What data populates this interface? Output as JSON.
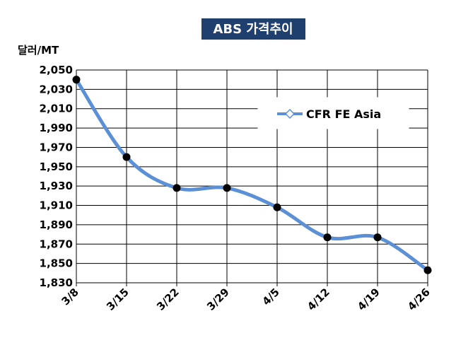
{
  "chart_data": {
    "type": "line",
    "title": "ABS 가격추이",
    "ylabel": "달러/MT",
    "xlabel": "",
    "categories": [
      "3/8",
      "3/15",
      "3/22",
      "3/29",
      "4/5",
      "4/12",
      "4/19",
      "4/26"
    ],
    "series": [
      {
        "name": "CFR FE Asia",
        "values": [
          2040,
          1960,
          1928,
          1928,
          1908,
          1877,
          1877,
          1843
        ],
        "color": "#5b8fd6"
      }
    ],
    "yticks": [
      "2,050",
      "2,030",
      "2,010",
      "1,990",
      "1,970",
      "1,950",
      "1,930",
      "1,910",
      "1,890",
      "1,870",
      "1,850",
      "1,830"
    ],
    "ylim": [
      1830,
      2050
    ],
    "grid": true,
    "legend": "top-right"
  },
  "colors": {
    "title_bg": "#1f3f6e",
    "line": "#5b8fd6",
    "marker": "#000000"
  }
}
